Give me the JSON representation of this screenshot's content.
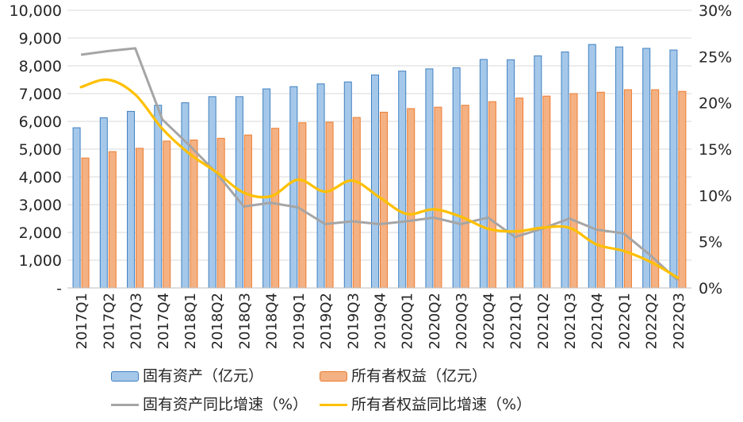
{
  "chart_data": {
    "type": "combo-bar-line",
    "title": "",
    "categories": [
      "2017Q1",
      "2017Q2",
      "2017Q3",
      "2017Q4",
      "2018Q1",
      "2018Q2",
      "2018Q3",
      "2018Q4",
      "2019Q1",
      "2019Q2",
      "2019Q3",
      "2019Q4",
      "2020Q1",
      "2020Q2",
      "2020Q3",
      "2020Q4",
      "2021Q1",
      "2021Q2",
      "2021Q3",
      "2021Q4",
      "2022Q1",
      "2022Q2",
      "2022Q3"
    ],
    "series": [
      {
        "key": "fixed-assets",
        "name": "固有资产（亿元）",
        "type": "bar",
        "axis": "left",
        "fill": "#A5C8EA",
        "stroke": "#4080C0",
        "values": [
          5770,
          6130,
          6360,
          6580,
          6670,
          6890,
          6890,
          7170,
          7250,
          7350,
          7420,
          7670,
          7810,
          7890,
          7930,
          8230,
          8220,
          8360,
          8500,
          8770,
          8680,
          8630,
          8570
        ]
      },
      {
        "key": "owners-equity",
        "name": "所有者权益（亿元）",
        "type": "bar",
        "axis": "left",
        "fill": "#F4B183",
        "stroke": "#ED7D31",
        "values": [
          4680,
          4910,
          5030,
          5290,
          5330,
          5390,
          5510,
          5750,
          5950,
          5970,
          6140,
          6330,
          6460,
          6510,
          6580,
          6710,
          6840,
          6910,
          7000,
          7050,
          7140,
          7140,
          7080
        ]
      },
      {
        "key": "fixed-assets-growth",
        "name": "固有资产同比增速（%）",
        "type": "line",
        "axis": "right",
        "color": "#A5A5A5",
        "smooth": false,
        "values": [
          25.2,
          25.6,
          25.9,
          18.2,
          15.4,
          12.4,
          8.8,
          9.2,
          8.7,
          6.9,
          7.2,
          6.9,
          7.2,
          7.6,
          6.9,
          7.6,
          5.5,
          6.4,
          7.5,
          6.3,
          5.9,
          3.5,
          0.8
        ]
      },
      {
        "key": "owners-equity-growth",
        "name": "所有者权益同比增速（%）",
        "type": "line",
        "axis": "right",
        "color": "#FFC000",
        "smooth": true,
        "values": [
          21.7,
          22.5,
          20.9,
          17.2,
          14.5,
          12.5,
          10.3,
          9.9,
          11.7,
          10.4,
          11.6,
          9.8,
          8.0,
          8.5,
          7.7,
          6.4,
          6.1,
          6.5,
          6.5,
          4.7,
          4.0,
          2.8,
          1.1
        ]
      }
    ],
    "left_axis": {
      "min": 0,
      "max": 10000,
      "step": 1000,
      "labels": [
        "-",
        "1,000",
        "2,000",
        "3,000",
        "4,000",
        "5,000",
        "6,000",
        "7,000",
        "8,000",
        "9,000",
        "10,000"
      ]
    },
    "right_axis": {
      "min": 0,
      "max": 30,
      "step": 5,
      "labels": [
        "0%",
        "5%",
        "10%",
        "15%",
        "20%",
        "25%",
        "30%"
      ]
    },
    "grid": true,
    "legend_position": "bottom",
    "colors": {
      "gridline": "#D9D9D9",
      "axis_line": "#BFBFBF",
      "text": "#262626"
    }
  }
}
